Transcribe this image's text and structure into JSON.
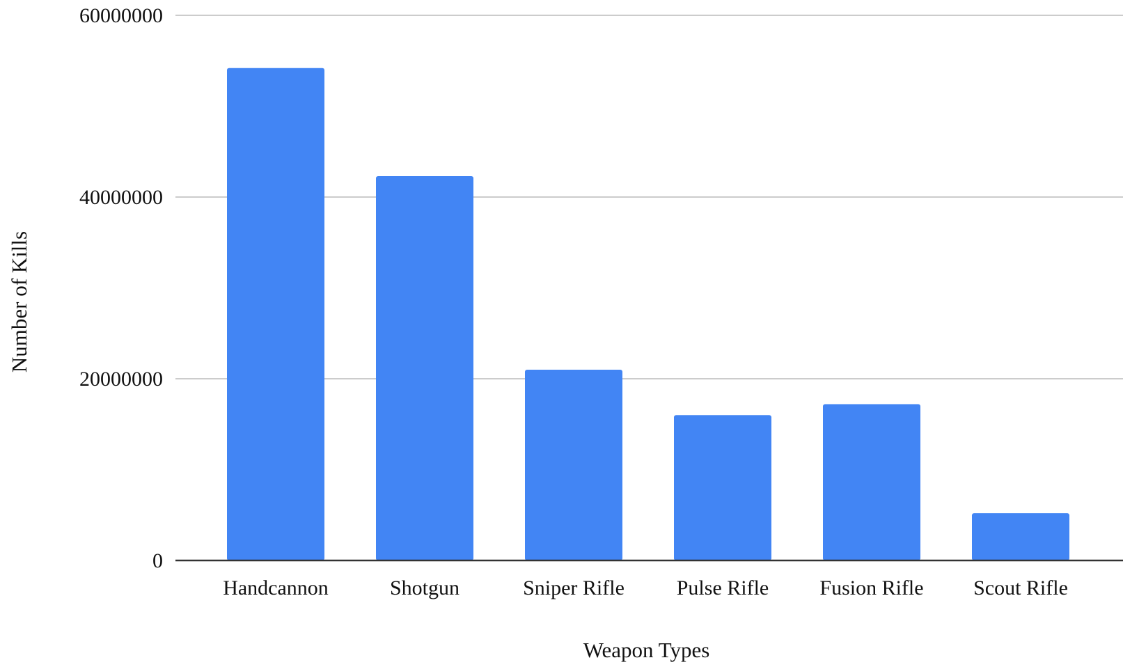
{
  "chart_data": {
    "type": "bar",
    "title": "",
    "xlabel": "Weapon Types",
    "ylabel": "Number of Kills",
    "categories": [
      "Handcannon",
      "Shotgun",
      "Sniper Rifle",
      "Pulse Rifle",
      "Fusion Rifle",
      "Scout Rifle"
    ],
    "values": [
      54200000,
      42300000,
      21000000,
      16000000,
      17200000,
      5200000
    ],
    "ylim": [
      0,
      60000000
    ],
    "yticks": [
      "0",
      "20000000",
      "40000000",
      "60000000"
    ],
    "grid": true,
    "legend": "none",
    "bar_color": "#4285f4"
  }
}
